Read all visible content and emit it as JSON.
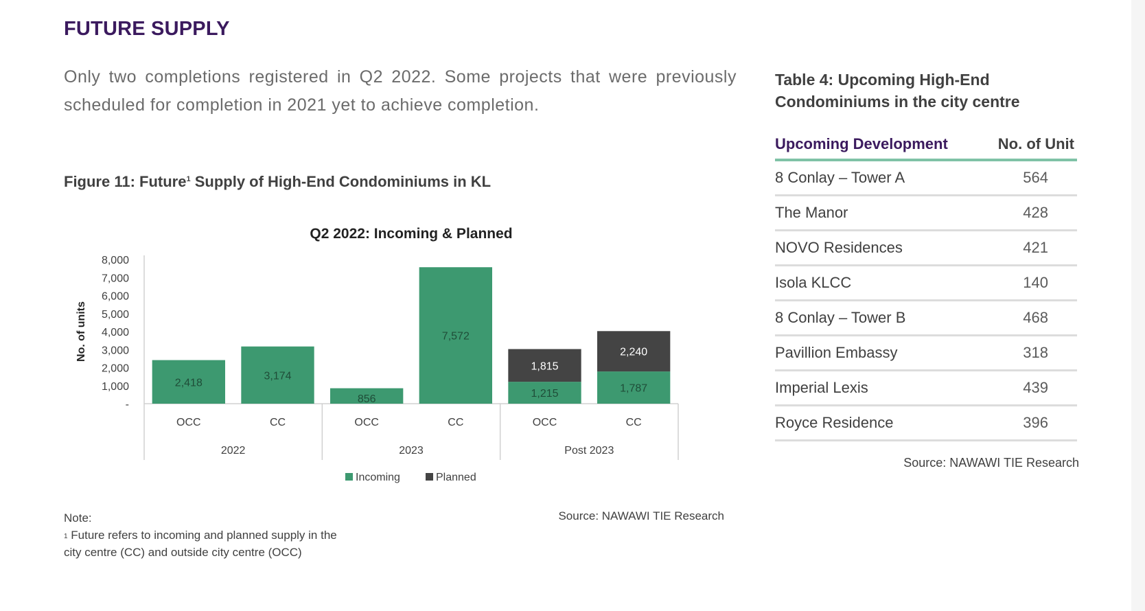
{
  "section_title": "FUTURE SUPPLY",
  "intro_text": "Only two completions registered in Q2 2022. Some projects that were previously scheduled for completion in 2021 yet to achieve completion.",
  "figure": {
    "title_prefix": "Figure 11: Future",
    "title_sup": "1",
    "title_suffix": " Supply of High-End Condominiums in KL",
    "source": "Source: NAWAWI TIE Research"
  },
  "chart_data": {
    "type": "bar",
    "stacked": true,
    "title": "Q2 2022: Incoming & Planned",
    "ylabel": "No. of units",
    "xlabel": "",
    "ylim": [
      0,
      8000
    ],
    "yticks": [
      {
        "value": 0,
        "label": "-"
      },
      {
        "value": 1000,
        "label": "1,000"
      },
      {
        "value": 2000,
        "label": "2,000"
      },
      {
        "value": 3000,
        "label": "3,000"
      },
      {
        "value": 4000,
        "label": "4,000"
      },
      {
        "value": 5000,
        "label": "5,000"
      },
      {
        "value": 6000,
        "label": "6,000"
      },
      {
        "value": 7000,
        "label": "7,000"
      },
      {
        "value": 8000,
        "label": "8,000"
      }
    ],
    "categories": [
      "OCC",
      "CC",
      "OCC",
      "CC",
      "OCC",
      "CC"
    ],
    "groups": [
      {
        "label": "2022",
        "span": 2
      },
      {
        "label": "2023",
        "span": 2
      },
      {
        "label": "Post 2023",
        "span": 2
      }
    ],
    "series": [
      {
        "name": "Incoming",
        "color": "#3d9970",
        "label_color": "#1f4d38",
        "values": [
          2418,
          3174,
          856,
          7572,
          1215,
          1787
        ],
        "labels": [
          "2,418",
          "3,174",
          "856",
          "7,572",
          "1,215",
          "1,787"
        ]
      },
      {
        "name": "Planned",
        "color": "#444444",
        "label_color": "#ffffff",
        "values": [
          0,
          0,
          0,
          0,
          1815,
          2240
        ],
        "labels": [
          "",
          "",
          "",
          "",
          "1,815",
          "2,240"
        ]
      }
    ],
    "legend": "bottom",
    "grid": false
  },
  "note": {
    "heading": "Note:",
    "sup": "1",
    "line1": " Future refers to incoming and planned supply in the",
    "line2": "city centre (CC) and outside city centre (OCC)"
  },
  "table": {
    "caption_line1": "Table 4: Upcoming High-End",
    "caption_line2": "Condominiums in the city centre",
    "header_dev": "Upcoming Development",
    "header_units": "No. of Unit",
    "rows": [
      {
        "name": "8 Conlay – Tower A",
        "units": "564"
      },
      {
        "name": "The Manor",
        "units": "428"
      },
      {
        "name": "NOVO Residences",
        "units": "421"
      },
      {
        "name": "Isola KLCC",
        "units": "140"
      },
      {
        "name": "8 Conlay – Tower B",
        "units": "468"
      },
      {
        "name": "Pavillion Embassy",
        "units": "318"
      },
      {
        "name": "Imperial Lexis",
        "units": "439"
      },
      {
        "name": "Royce Residence",
        "units": "396"
      }
    ],
    "source": "Source: NAWAWI TIE Research"
  }
}
